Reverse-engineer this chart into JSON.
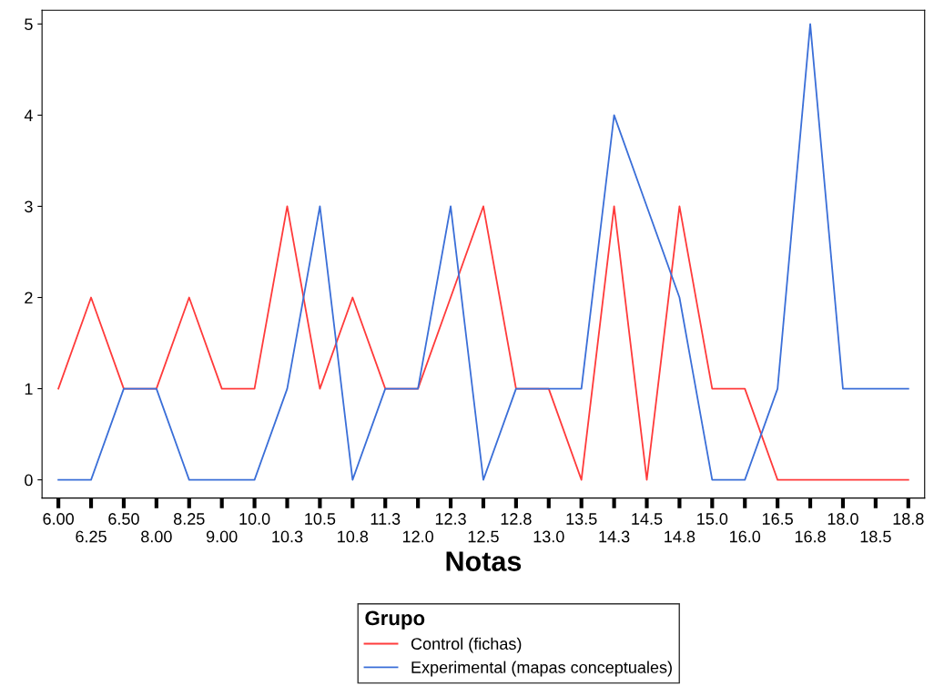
{
  "chart_data": {
    "type": "line",
    "xlabel": "Notas",
    "legend_title": "Grupo",
    "legend": "bottom",
    "grid": false,
    "marker": "none",
    "line_style": "solid",
    "categories": [
      "6.00",
      "6.25",
      "6.50",
      "8.00",
      "8.25",
      "9.00",
      "10.0",
      "10.3",
      "10.5",
      "10.8",
      "11.3",
      "12.0",
      "12.3",
      "12.5",
      "12.8",
      "13.0",
      "13.5",
      "14.3",
      "14.5",
      "14.8",
      "15.0",
      "16.0",
      "16.5",
      "16.8",
      "18.0",
      "18.5",
      "18.8"
    ],
    "ylim": [
      -0.2,
      5.15
    ],
    "yticks": [
      0,
      1,
      2,
      3,
      4,
      5
    ],
    "series": [
      {
        "name": "Control (fichas)",
        "color": "#ff3b3b",
        "values": [
          1,
          2,
          1,
          1,
          2,
          1,
          1,
          3,
          1,
          2,
          1,
          1,
          2,
          3,
          1,
          1,
          0,
          3,
          0,
          3,
          1,
          1,
          0,
          0,
          0,
          0,
          0
        ]
      },
      {
        "name": "Experimental (mapas conceptuales)",
        "color": "#3b6fd8",
        "values": [
          0,
          0,
          1,
          1,
          0,
          0,
          0,
          1,
          3,
          0,
          1,
          1,
          3,
          0,
          1,
          1,
          1,
          4,
          3,
          2,
          0,
          0,
          1,
          5,
          1,
          1,
          1
        ]
      }
    ]
  }
}
